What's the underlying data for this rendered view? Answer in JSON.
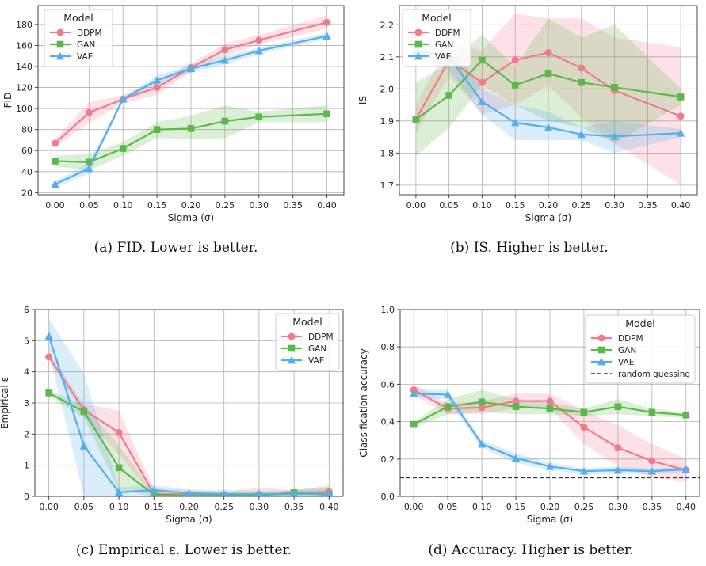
{
  "chart_data": [
    {
      "type": "line",
      "caption": "(a) FID. Lower is better.",
      "xlabel": "Sigma (σ)",
      "ylabel": "FID",
      "x": [
        0.0,
        0.05,
        0.1,
        0.15,
        0.2,
        0.25,
        0.3,
        0.4
      ],
      "xticks": [
        "0.00",
        "0.05",
        "0.10",
        "0.15",
        "0.20",
        "0.25",
        "0.30",
        "0.35",
        "0.40"
      ],
      "xlim": [
        -0.025,
        0.425
      ],
      "ylim": [
        18,
        198
      ],
      "yticks": [
        20,
        40,
        60,
        80,
        100,
        120,
        140,
        160,
        180
      ],
      "grid": true,
      "legend": {
        "title": "Model",
        "placement": "top-left"
      },
      "series": [
        {
          "name": "DDPM",
          "color": "#f07b8c",
          "marker": "circle",
          "values": [
            67,
            96,
            109,
            120,
            139,
            156,
            165,
            182
          ],
          "lower": [
            63,
            86,
            105,
            113,
            135,
            150,
            161,
            176
          ],
          "upper": [
            71,
            106,
            113,
            126,
            143,
            162,
            170,
            189
          ]
        },
        {
          "name": "GAN",
          "color": "#5cb84a",
          "marker": "square",
          "values": [
            50,
            49,
            62,
            80,
            81,
            88,
            92,
            95
          ],
          "lower": [
            45,
            41,
            55,
            72,
            71,
            72,
            87,
            87
          ],
          "upper": [
            55,
            57,
            68,
            87,
            93,
            103,
            97,
            103
          ]
        },
        {
          "name": "VAE",
          "color": "#55adea",
          "marker": "triangle",
          "values": [
            28,
            43,
            109,
            127,
            138,
            146,
            155,
            169
          ],
          "lower": [
            25,
            38,
            107,
            123,
            134,
            142,
            152,
            166
          ],
          "upper": [
            31,
            48,
            111,
            131,
            142,
            150,
            158,
            172
          ]
        }
      ]
    },
    {
      "type": "line",
      "caption": "(b) IS. Higher is better.",
      "xlabel": "Sigma (σ)",
      "ylabel": "IS",
      "x": [
        0.0,
        0.05,
        0.1,
        0.15,
        0.2,
        0.25,
        0.3,
        0.4
      ],
      "xticks": [
        "0.00",
        "0.05",
        "0.10",
        "0.15",
        "0.20",
        "0.25",
        "0.30",
        "0.35",
        "0.40"
      ],
      "xlim": [
        -0.025,
        0.425
      ],
      "ylim": [
        1.67,
        2.26
      ],
      "yticks": [
        1.7,
        1.8,
        1.9,
        2.0,
        2.1,
        2.2
      ],
      "grid": true,
      "legend": {
        "title": "Model",
        "placement": "top-left"
      },
      "series": [
        {
          "name": "DDPM",
          "color": "#f07b8c",
          "marker": "circle",
          "values": [
            1.905,
            2.09,
            2.02,
            2.09,
            2.113,
            2.065,
            1.995,
            1.915
          ],
          "lower": [
            1.86,
            2.04,
            1.92,
            1.95,
            2.01,
            1.91,
            1.83,
            1.7
          ],
          "upper": [
            1.95,
            2.14,
            2.12,
            2.235,
            2.22,
            2.22,
            2.16,
            2.13
          ]
        },
        {
          "name": "GAN",
          "color": "#5cb84a",
          "marker": "square",
          "values": [
            1.905,
            1.98,
            2.09,
            2.012,
            2.048,
            2.02,
            2.005,
            1.975
          ],
          "lower": [
            1.79,
            1.88,
            2.01,
            1.95,
            1.9,
            1.88,
            1.83,
            1.95
          ],
          "upper": [
            2.02,
            2.08,
            2.17,
            2.07,
            2.22,
            2.16,
            2.2,
            2.0
          ]
        },
        {
          "name": "VAE",
          "color": "#55adea",
          "marker": "triangle",
          "values": [
            2.12,
            2.1,
            1.96,
            1.895,
            1.88,
            1.858,
            1.852,
            1.862
          ],
          "lower": [
            2.1,
            2.06,
            1.92,
            1.84,
            1.84,
            1.84,
            1.8,
            1.85
          ],
          "upper": [
            2.14,
            2.14,
            2.0,
            1.95,
            1.93,
            1.88,
            1.9,
            1.875
          ]
        }
      ]
    },
    {
      "type": "line",
      "caption": "(c) Empirical ε. Lower is better.",
      "xlabel": "Sigma (σ)",
      "ylabel": "Empirical ε",
      "x": [
        0.0,
        0.05,
        0.1,
        0.15,
        0.2,
        0.25,
        0.3,
        0.35,
        0.4
      ],
      "xticks": [
        "0.00",
        "0.05",
        "0.10",
        "0.15",
        "0.20",
        "0.25",
        "0.30",
        "0.35",
        "0.40"
      ],
      "xlim": [
        -0.02,
        0.42
      ],
      "ylim": [
        0,
        6
      ],
      "yticks": [
        0,
        1,
        2,
        3,
        4,
        5,
        6
      ],
      "grid": true,
      "legend": {
        "title": "Model",
        "placement": "top-right"
      },
      "series": [
        {
          "name": "DDPM",
          "color": "#f07b8c",
          "marker": "circle",
          "values": [
            4.48,
            2.78,
            2.05,
            0.08,
            0.06,
            0.05,
            0.05,
            0.08,
            0.15
          ],
          "lower": [
            4.38,
            2.58,
            1.35,
            0.0,
            0.0,
            0.0,
            0.0,
            0.0,
            0.0
          ],
          "upper": [
            4.58,
            2.98,
            2.75,
            0.25,
            0.2,
            0.15,
            0.28,
            0.2,
            0.3
          ]
        },
        {
          "name": "GAN",
          "color": "#5cb84a",
          "marker": "square",
          "values": [
            3.32,
            2.72,
            0.92,
            0.05,
            0.03,
            0.03,
            0.03,
            0.12,
            0.05
          ],
          "lower": [
            3.22,
            2.52,
            0.2,
            0.0,
            0.0,
            0.0,
            0.0,
            0.0,
            0.0
          ],
          "upper": [
            3.42,
            2.92,
            1.65,
            0.1,
            0.08,
            0.08,
            0.08,
            0.2,
            0.35
          ]
        },
        {
          "name": "VAE",
          "color": "#55adea",
          "marker": "triangle",
          "values": [
            5.15,
            1.62,
            0.13,
            0.2,
            0.1,
            0.08,
            0.08,
            0.08,
            0.08
          ],
          "lower": [
            4.6,
            0.0,
            0.0,
            0.0,
            0.0,
            0.0,
            0.0,
            0.0,
            0.0
          ],
          "upper": [
            5.7,
            3.95,
            0.3,
            0.35,
            0.22,
            0.2,
            0.18,
            0.2,
            0.22
          ]
        }
      ]
    },
    {
      "type": "line",
      "caption": "(d) Accuracy. Higher is better.",
      "xlabel": "Sigma (σ)",
      "ylabel": "Classification accuracy",
      "x": [
        0.0,
        0.05,
        0.1,
        0.15,
        0.2,
        0.25,
        0.3,
        0.35,
        0.4
      ],
      "xticks": [
        "0.00",
        "0.05",
        "0.10",
        "0.15",
        "0.20",
        "0.25",
        "0.30",
        "0.35",
        "0.40"
      ],
      "xlim": [
        -0.02,
        0.42
      ],
      "ylim": [
        0,
        1.0
      ],
      "yticks": [
        0.0,
        0.2,
        0.4,
        0.6,
        0.8,
        1.0
      ],
      "grid": true,
      "legend": {
        "title": "Model",
        "placement": "top-right"
      },
      "reference_line": {
        "name": "random guessing",
        "value": 0.1,
        "color": "#333333"
      },
      "series": [
        {
          "name": "DDPM",
          "color": "#f07b8c",
          "marker": "circle",
          "values": [
            0.57,
            0.47,
            0.475,
            0.51,
            0.51,
            0.37,
            0.26,
            0.19,
            0.14
          ],
          "lower": [
            0.54,
            0.44,
            0.44,
            0.47,
            0.47,
            0.28,
            0.16,
            0.1,
            0.08
          ],
          "upper": [
            0.6,
            0.5,
            0.51,
            0.55,
            0.55,
            0.46,
            0.38,
            0.28,
            0.2
          ]
        },
        {
          "name": "GAN",
          "color": "#5cb84a",
          "marker": "square",
          "values": [
            0.385,
            0.48,
            0.505,
            0.48,
            0.47,
            0.45,
            0.48,
            0.45,
            0.435
          ],
          "lower": [
            0.37,
            0.44,
            0.45,
            0.44,
            0.44,
            0.43,
            0.44,
            0.43,
            0.42
          ],
          "upper": [
            0.4,
            0.52,
            0.57,
            0.52,
            0.5,
            0.47,
            0.52,
            0.47,
            0.45
          ]
        },
        {
          "name": "VAE",
          "color": "#55adea",
          "marker": "triangle",
          "values": [
            0.55,
            0.545,
            0.28,
            0.205,
            0.16,
            0.135,
            0.14,
            0.135,
            0.145
          ],
          "lower": [
            0.53,
            0.52,
            0.26,
            0.18,
            0.14,
            0.12,
            0.12,
            0.12,
            0.13
          ],
          "upper": [
            0.57,
            0.57,
            0.3,
            0.23,
            0.18,
            0.15,
            0.16,
            0.15,
            0.16
          ]
        }
      ]
    }
  ]
}
